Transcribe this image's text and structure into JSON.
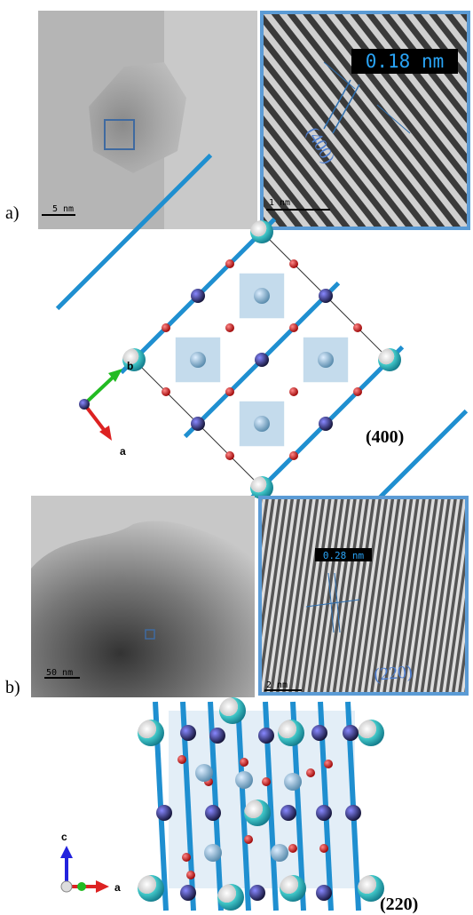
{
  "panels": [
    {
      "label": "a)",
      "tem": {
        "scale_bar": "5 nm"
      },
      "hrtem": {
        "spacing": "0.18 nm",
        "plane": "(400)",
        "scale_bar": "1 nm"
      },
      "structure": {
        "axis_up": "b",
        "axis_down": "a",
        "plane": "(400)"
      }
    },
    {
      "label": "b)",
      "tem": {
        "scale_bar": "50 nm"
      },
      "hrtem": {
        "spacing": "0.28 nm",
        "plane": "(220)",
        "scale_bar": "2 nm"
      },
      "structure": {
        "axis_up": "c",
        "axis_down": "a",
        "plane": "(220)"
      }
    }
  ]
}
